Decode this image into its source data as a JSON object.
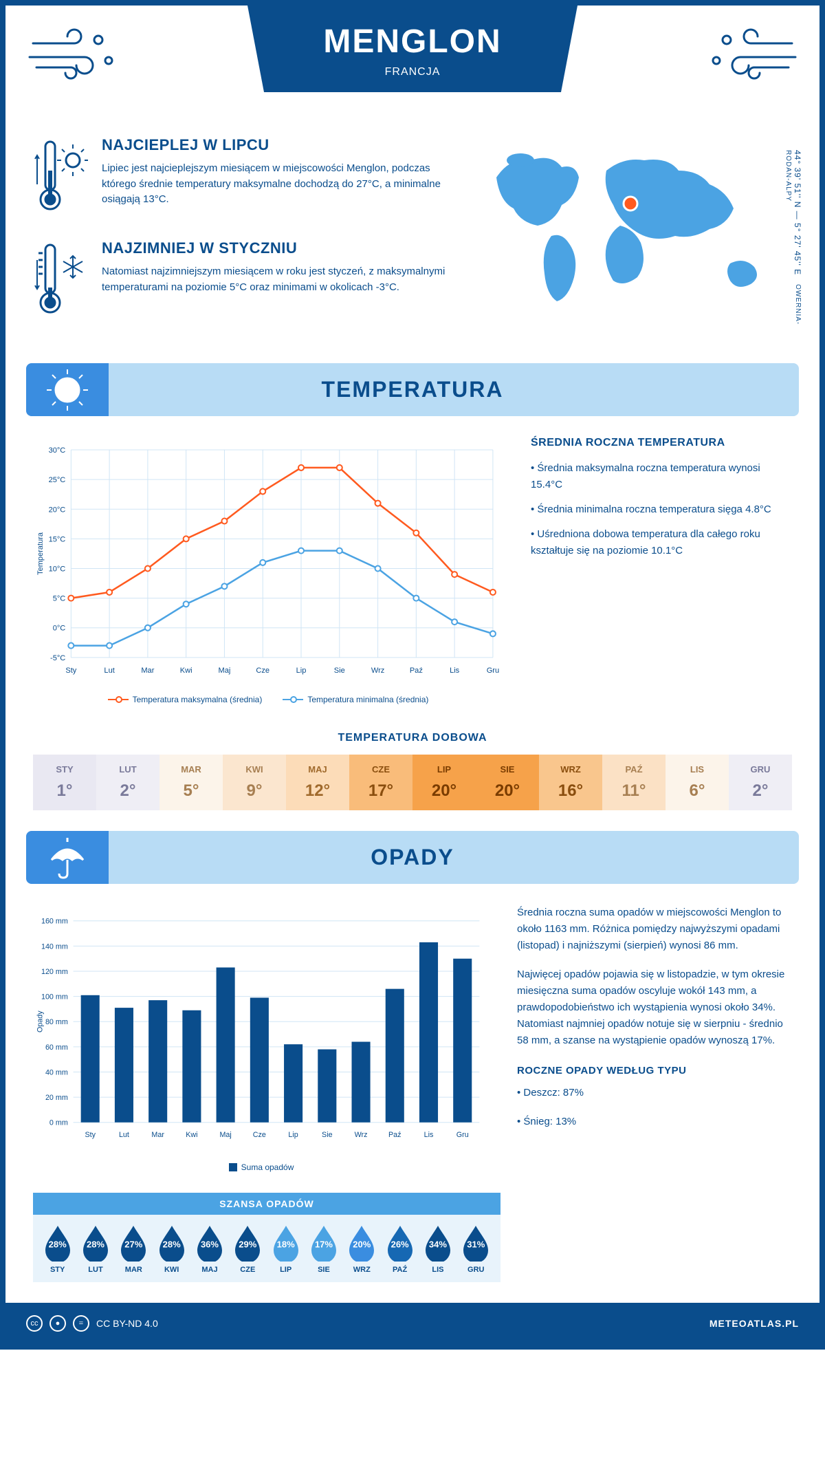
{
  "header": {
    "title": "MENGLON",
    "country": "FRANCJA"
  },
  "coords": "44° 39' 51'' N — 5° 27' 45'' E",
  "region": "OWERNIA-RODAN-ALPY",
  "warmest": {
    "title": "NAJCIEPLEJ W LIPCU",
    "text": "Lipiec jest najcieplejszym miesiącem w miejscowości Menglon, podczas którego średnie temperatury maksymalne dochodzą do 27°C, a minimalne osiągają 13°C."
  },
  "coldest": {
    "title": "NAJZIMNIEJ W STYCZNIU",
    "text": "Natomiast najzimniejszym miesiącem w roku jest styczeń, z maksymalnymi temperaturami na poziomie 5°C oraz minimami w okolicach -3°C."
  },
  "section_temp": "TEMPERATURA",
  "section_precip": "OPADY",
  "temp_chart": {
    "type": "line",
    "months": [
      "Sty",
      "Lut",
      "Mar",
      "Kwi",
      "Maj",
      "Cze",
      "Lip",
      "Sie",
      "Wrz",
      "Paź",
      "Lis",
      "Gru"
    ],
    "max_series": [
      5,
      6,
      10,
      15,
      18,
      23,
      27,
      27,
      21,
      16,
      9,
      6
    ],
    "min_series": [
      -3,
      -3,
      0,
      4,
      7,
      11,
      13,
      13,
      10,
      5,
      1,
      -1
    ],
    "max_color": "#ff5a1f",
    "min_color": "#4ba3e3",
    "ylim": [
      -5,
      30
    ],
    "ytick_step": 5,
    "grid_color": "#d0e5f5",
    "ylabel": "Temperatura",
    "legend_max": "Temperatura maksymalna (średnia)",
    "legend_min": "Temperatura minimalna (średnia)"
  },
  "temp_info": {
    "title": "ŚREDNIA ROCZNA TEMPERATURA",
    "b1": "• Średnia maksymalna roczna temperatura wynosi 15.4°C",
    "b2": "• Średnia minimalna roczna temperatura sięga 4.8°C",
    "b3": "• Uśredniona dobowa temperatura dla całego roku kształtuje się na poziomie 10.1°C"
  },
  "daily_title": "TEMPERATURA DOBOWA",
  "daily": {
    "months": [
      "STY",
      "LUT",
      "MAR",
      "KWI",
      "MAJ",
      "CZE",
      "LIP",
      "SIE",
      "WRZ",
      "PAŹ",
      "LIS",
      "GRU"
    ],
    "values": [
      "1°",
      "2°",
      "5°",
      "9°",
      "12°",
      "17°",
      "20°",
      "20°",
      "16°",
      "11°",
      "6°",
      "2°"
    ],
    "bg_colors": [
      "#e9e8f2",
      "#efeef5",
      "#fcf4ea",
      "#fbe6cf",
      "#fcdcb8",
      "#f9bc7a",
      "#f6a24a",
      "#f6a24a",
      "#f9c68d",
      "#fbe1c5",
      "#fcf4ea",
      "#efeef5"
    ],
    "text_colors": [
      "#7a7a9a",
      "#7a7a9a",
      "#a77f52",
      "#a77f52",
      "#a06a2c",
      "#8a4e0e",
      "#7a3c00",
      "#7a3c00",
      "#8a4e0e",
      "#a77f52",
      "#a77f52",
      "#7a7a9a"
    ]
  },
  "precip_chart": {
    "type": "bar",
    "months": [
      "Sty",
      "Lut",
      "Mar",
      "Kwi",
      "Maj",
      "Cze",
      "Lip",
      "Sie",
      "Wrz",
      "Paź",
      "Lis",
      "Gru"
    ],
    "values": [
      101,
      91,
      97,
      89,
      123,
      99,
      62,
      58,
      64,
      106,
      143,
      130
    ],
    "bar_color": "#0a4d8c",
    "ylim": [
      0,
      160
    ],
    "ytick_step": 20,
    "grid_color": "#d0e5f5",
    "ylabel": "Opady",
    "legend": "Suma opadów"
  },
  "precip_info": {
    "p1": "Średnia roczna suma opadów w miejscowości Menglon to około 1163 mm. Różnica pomiędzy najwyższymi opadami (listopad) i najniższymi (sierpień) wynosi 86 mm.",
    "p2": "Najwięcej opadów pojawia się w listopadzie, w tym okresie miesięczna suma opadów oscyluje wokół 143 mm, a prawdopodobieństwo ich wystąpienia wynosi około 34%. Natomiast najmniej opadów notuje się w sierpniu - średnio 58 mm, a szanse na wystąpienie opadów wynoszą 17%.",
    "type_title": "ROCZNE OPADY WEDŁUG TYPU",
    "rain": "• Deszcz: 87%",
    "snow": "• Śnieg: 13%"
  },
  "chance": {
    "title": "SZANSA OPADÓW",
    "months": [
      "STY",
      "LUT",
      "MAR",
      "KWI",
      "MAJ",
      "CZE",
      "LIP",
      "SIE",
      "WRZ",
      "PAŹ",
      "LIS",
      "GRU"
    ],
    "values": [
      "28%",
      "28%",
      "27%",
      "28%",
      "36%",
      "29%",
      "18%",
      "17%",
      "20%",
      "26%",
      "34%",
      "31%"
    ],
    "colors": [
      "#0a4d8c",
      "#0a4d8c",
      "#0a4d8c",
      "#0a4d8c",
      "#0a4d8c",
      "#0a4d8c",
      "#4ba3e3",
      "#4ba3e3",
      "#3a8de0",
      "#1668b3",
      "#0a4d8c",
      "#0a4d8c"
    ]
  },
  "footer": {
    "license": "CC BY-ND 4.0",
    "site": "METEOATLAS.PL"
  }
}
